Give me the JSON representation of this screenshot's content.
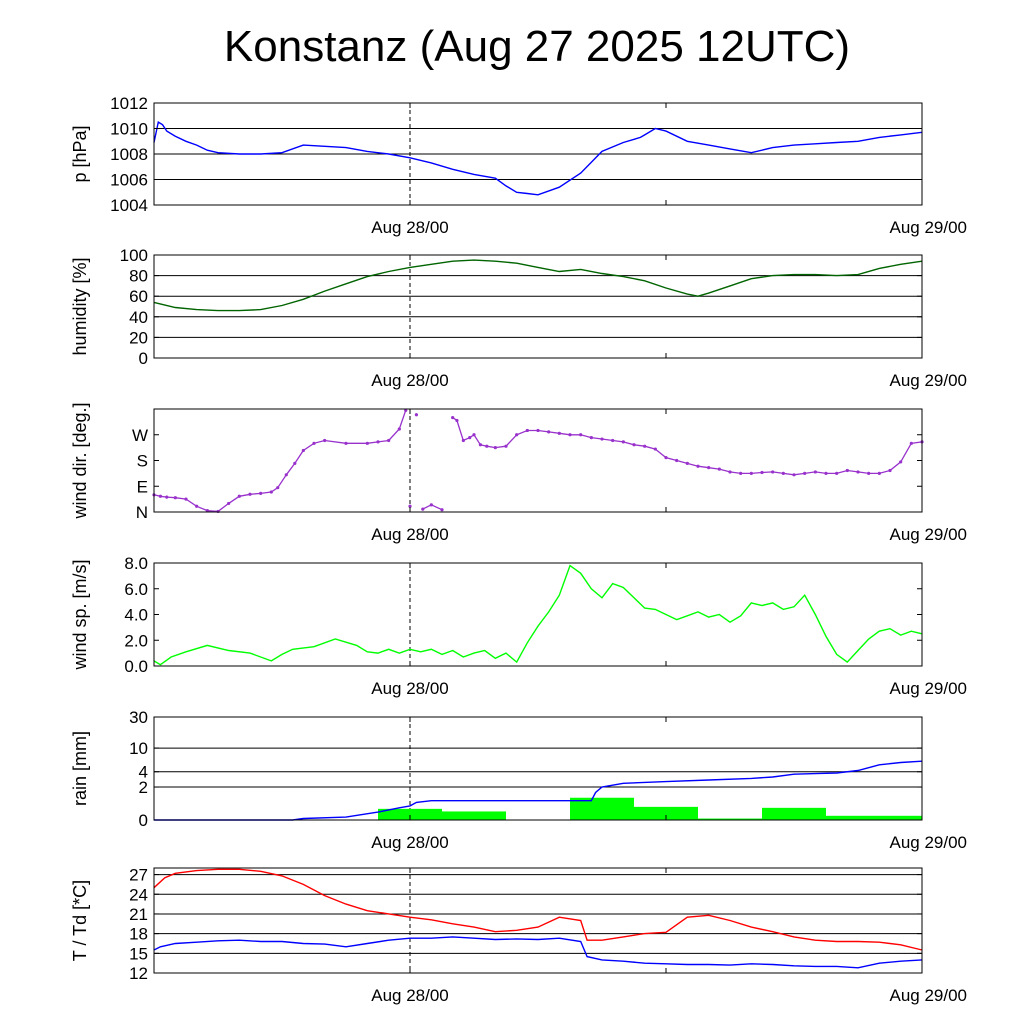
{
  "title": "Konstanz (Aug 27 2025 12UTC)",
  "chart_data": [
    {
      "type": "line",
      "ylabel": "p [hPa]",
      "ylim": [
        1004,
        1012
      ],
      "yticks": [
        1004,
        1006,
        1008,
        1010,
        1012
      ],
      "grid": "horizontal",
      "x_ticks": [
        "Aug 28/00",
        "Aug 29/00"
      ],
      "x_domain_hours": [
        0,
        36
      ],
      "marker_hour": 12,
      "series": [
        {
          "color": "#0000ff",
          "x": [
            0,
            0.2,
            0.4,
            0.6,
            1,
            1.5,
            2,
            2.5,
            3,
            4,
            5,
            6,
            7,
            8,
            9,
            10,
            11,
            12,
            13,
            14,
            15,
            16,
            16.5,
            17,
            17.5,
            18,
            19,
            20,
            21,
            22,
            22.8,
            23,
            23.5,
            24,
            25,
            26,
            27,
            28,
            29,
            30,
            31,
            32,
            33,
            34,
            35,
            36
          ],
          "y": [
            1008.9,
            1010.5,
            1010.3,
            1009.8,
            1009.4,
            1009.0,
            1008.7,
            1008.3,
            1008.1,
            1008.0,
            1008.0,
            1008.1,
            1008.7,
            1008.6,
            1008.5,
            1008.2,
            1008.0,
            1007.7,
            1007.3,
            1006.8,
            1006.4,
            1006.1,
            1005.5,
            1005.0,
            1004.9,
            1004.8,
            1005.4,
            1006.5,
            1008.2,
            1008.9,
            1009.3,
            1009.5,
            1010.0,
            1009.8,
            1009.0,
            1008.7,
            1008.4,
            1008.1,
            1008.5,
            1008.7,
            1008.8,
            1008.9,
            1009.0,
            1009.3,
            1009.5,
            1009.7
          ]
        }
      ]
    },
    {
      "type": "line",
      "ylabel": "humidity [%]",
      "ylim": [
        0,
        100
      ],
      "yticks": [
        0,
        20,
        40,
        60,
        80,
        100
      ],
      "grid": "horizontal",
      "x_ticks": [
        "Aug 28/00",
        "Aug 29/00"
      ],
      "x_domain_hours": [
        0,
        36
      ],
      "marker_hour": 12,
      "series": [
        {
          "color": "#006400",
          "x": [
            0,
            1,
            2,
            3,
            4,
            5,
            6,
            7,
            8,
            9,
            10,
            11,
            12,
            13,
            14,
            15,
            16,
            17,
            18,
            19,
            20,
            21,
            22,
            23,
            24,
            25,
            25.5,
            26,
            27,
            28,
            29,
            30,
            31,
            32,
            33,
            34,
            35,
            36
          ],
          "y": [
            54,
            49,
            47,
            46,
            46,
            47,
            51,
            57,
            65,
            72,
            79,
            84,
            88,
            91,
            94,
            95,
            94,
            92,
            88,
            84,
            86,
            82,
            79,
            75,
            68,
            62,
            60,
            63,
            70,
            77,
            80,
            81,
            81,
            80,
            81,
            87,
            91,
            94
          ]
        }
      ]
    },
    {
      "type": "scatter",
      "ylabel": "wind dir. [deg.]",
      "ylim": [
        0,
        360
      ],
      "yticks": [
        0,
        90,
        180,
        270
      ],
      "ytick_labels": [
        "N",
        "E",
        "S",
        "W"
      ],
      "grid": "none",
      "x_ticks": [
        "Aug 28/00",
        "Aug 29/00"
      ],
      "x_domain_hours": [
        0,
        36
      ],
      "marker_hour": 12,
      "series": [
        {
          "color": "#9932cc",
          "x": [
            0,
            0.3,
            0.6,
            1,
            1.5,
            2,
            2.5,
            3,
            3.5,
            4,
            4.5,
            5,
            5.5,
            5.8,
            6.2,
            6.6,
            7,
            7.5,
            8,
            9,
            10,
            10.5,
            11,
            11.5,
            11.8,
            12,
            12.3,
            12.6,
            13,
            13.5,
            14,
            14.2,
            14.5,
            14.8,
            15,
            15.3,
            15.6,
            16,
            16.5,
            17,
            17.5,
            18,
            18.5,
            19,
            19.5,
            20,
            20.5,
            21,
            21.5,
            22,
            22.5,
            23,
            23.5,
            24,
            24.5,
            25,
            25.5,
            26,
            26.5,
            27,
            27.5,
            28,
            28.5,
            29,
            29.5,
            30,
            30.5,
            31,
            31.5,
            32,
            32.5,
            33,
            33.5,
            34,
            34.5,
            35,
            35.5,
            36
          ],
          "y": [
            60,
            55,
            52,
            50,
            45,
            20,
            5,
            2,
            30,
            55,
            62,
            65,
            70,
            85,
            130,
            170,
            215,
            240,
            250,
            240,
            240,
            245,
            250,
            290,
            355,
            20,
            340,
            10,
            25,
            8,
            330,
            320,
            250,
            260,
            270,
            235,
            230,
            225,
            230,
            270,
            285,
            285,
            280,
            275,
            270,
            270,
            260,
            255,
            250,
            245,
            235,
            230,
            220,
            190,
            180,
            170,
            160,
            155,
            150,
            140,
            135,
            135,
            138,
            140,
            135,
            130,
            135,
            140,
            135,
            135,
            145,
            140,
            135,
            135,
            145,
            175,
            240,
            245
          ],
          "y2": [
            0,
            0,
            0,
            0,
            0,
            0,
            0,
            0,
            0,
            0,
            0,
            0,
            0,
            0,
            0,
            0,
            0,
            0,
            0,
            0,
            0,
            0,
            0,
            0,
            0,
            0,
            0,
            0,
            0,
            0,
            0,
            0,
            0,
            0,
            0,
            0,
            0,
            0,
            0,
            0,
            0,
            0,
            0,
            0,
            0,
            0,
            0,
            0,
            0,
            0,
            0,
            0,
            0,
            0,
            0,
            0,
            0,
            0,
            0,
            0,
            0,
            0,
            0,
            0,
            0,
            0,
            0,
            0,
            0,
            0,
            0,
            0,
            0,
            0,
            0,
            0,
            0,
            0
          ]
        }
      ]
    },
    {
      "type": "line",
      "ylabel": "wind sp. [m/s]",
      "ylim": [
        0,
        8
      ],
      "yticks": [
        0,
        2,
        4,
        6,
        8
      ],
      "ytick_labels": [
        "0.0",
        "2.0",
        "4.0",
        "6.0",
        "8.0"
      ],
      "grid": "none",
      "x_ticks": [
        "Aug 28/00",
        "Aug 29/00"
      ],
      "x_domain_hours": [
        0,
        36
      ],
      "marker_hour": 12,
      "series": [
        {
          "color": "#00ff00",
          "x": [
            0,
            0.3,
            0.8,
            1.5,
            2.5,
            3.5,
            4.5,
            5.5,
            6,
            6.5,
            7.5,
            8.5,
            9.5,
            10,
            10.5,
            11,
            11.5,
            12,
            12.5,
            13,
            13.5,
            14,
            14.5,
            15,
            15.5,
            16,
            16.5,
            17,
            17.5,
            18,
            18.5,
            19,
            19.5,
            20,
            20.5,
            21,
            21.5,
            22,
            22.5,
            23,
            23.5,
            24,
            24.5,
            25,
            25.5,
            26,
            26.5,
            27,
            27.5,
            28,
            28.5,
            29,
            29.5,
            30,
            30.5,
            31,
            31.5,
            32,
            32.5,
            33,
            33.5,
            34,
            34.5,
            35,
            35.5,
            36
          ],
          "y": [
            0.4,
            0.1,
            0.7,
            1.1,
            1.6,
            1.2,
            1.0,
            0.4,
            0.9,
            1.3,
            1.5,
            2.1,
            1.6,
            1.1,
            1.0,
            1.3,
            1.0,
            1.3,
            1.1,
            1.3,
            0.9,
            1.2,
            0.7,
            1.0,
            1.2,
            0.6,
            1.0,
            0.3,
            1.8,
            3.1,
            4.2,
            5.5,
            7.8,
            7.2,
            6.0,
            5.3,
            6.4,
            6.1,
            5.3,
            4.5,
            4.4,
            4.0,
            3.6,
            3.9,
            4.2,
            3.8,
            4.0,
            3.4,
            3.9,
            4.9,
            4.7,
            4.9,
            4.4,
            4.6,
            5.5,
            4.0,
            2.3,
            0.9,
            0.3,
            1.2,
            2.1,
            2.7,
            2.9,
            2.4,
            2.7,
            2.5
          ]
        }
      ]
    },
    {
      "type": "bar",
      "ylabel": "rain [mm]",
      "ylim": [
        0,
        30
      ],
      "yticks": [
        0,
        2,
        4,
        10,
        30
      ],
      "grid": "horizontal",
      "x_ticks": [
        "Aug 28/00",
        "Aug 29/00"
      ],
      "x_domain_hours": [
        0,
        36
      ],
      "marker_hour": 12,
      "bars": {
        "color": "#00ff00",
        "x_start": [
          10.5,
          13.5,
          19.5,
          22.5,
          25.5,
          28.5,
          31.5
        ],
        "x_end": [
          13.5,
          16.5,
          22.5,
          25.5,
          28.5,
          31.5,
          36
        ],
        "values": [
          0.45,
          0.33,
          1.1,
          0.55,
          0.05,
          0.5,
          0.15
        ]
      },
      "series": [
        {
          "color": "#0000ff",
          "x": [
            0,
            6.5,
            7,
            9,
            10.5,
            11.5,
            12,
            12.3,
            13,
            16,
            19.5,
            20.5,
            20.7,
            21,
            22,
            24,
            26,
            28,
            29,
            30,
            31,
            32,
            33,
            34,
            35,
            36
          ],
          "y": [
            0,
            0,
            0.05,
            0.1,
            0.3,
            0.5,
            0.6,
            0.8,
            0.9,
            0.9,
            0.9,
            0.9,
            1.5,
            2.0,
            2.4,
            2.6,
            2.8,
            3.0,
            3.2,
            3.6,
            3.7,
            3.8,
            4.2,
            5.3,
            5.8,
            6.1
          ]
        }
      ]
    },
    {
      "type": "line",
      "ylabel": "T / Td [*C]",
      "ylim": [
        12,
        28
      ],
      "yticks": [
        12,
        15,
        18,
        21,
        24,
        27
      ],
      "grid": "horizontal",
      "x_ticks": [
        "Aug 28/00",
        "Aug 29/00"
      ],
      "x_domain_hours": [
        0,
        36
      ],
      "marker_hour": 12,
      "series": [
        {
          "color": "#ff0000",
          "x": [
            0,
            0.5,
            1,
            2,
            3,
            4,
            5,
            6,
            7,
            8,
            9,
            10,
            11,
            12,
            13,
            14,
            15,
            16,
            17,
            18,
            19,
            20,
            20.3,
            21,
            22,
            23,
            24,
            25,
            26,
            27,
            28,
            29,
            30,
            31,
            32,
            33,
            34,
            35,
            36
          ],
          "y": [
            25,
            26.5,
            27.2,
            27.6,
            27.8,
            27.8,
            27.5,
            26.8,
            25.5,
            23.8,
            22.5,
            21.5,
            21,
            20.5,
            20.1,
            19.5,
            19,
            18.3,
            18.5,
            19,
            20.5,
            20,
            17,
            17,
            17.5,
            18,
            18.2,
            20.5,
            20.8,
            20,
            19,
            18.3,
            17.5,
            17,
            16.8,
            16.8,
            16.7,
            16.3,
            15.5
          ]
        },
        {
          "color": "#0000ff",
          "x": [
            0,
            0.3,
            1,
            2,
            3,
            4,
            5,
            6,
            7,
            8,
            9,
            10,
            11,
            12,
            13,
            14,
            15,
            16,
            17,
            18,
            19,
            20,
            20.3,
            21,
            22,
            23,
            24,
            25,
            26,
            27,
            28,
            29,
            30,
            31,
            32,
            33,
            34,
            35,
            36
          ],
          "y": [
            15.5,
            16,
            16.5,
            16.7,
            16.9,
            17,
            16.8,
            16.8,
            16.5,
            16.4,
            16,
            16.5,
            17,
            17.3,
            17.3,
            17.5,
            17.3,
            17.1,
            17.2,
            17.1,
            17.3,
            16.8,
            14.5,
            14,
            13.8,
            13.5,
            13.4,
            13.3,
            13.3,
            13.2,
            13.4,
            13.3,
            13.1,
            13.0,
            13.0,
            12.8,
            13.5,
            13.8,
            14
          ]
        }
      ]
    }
  ]
}
